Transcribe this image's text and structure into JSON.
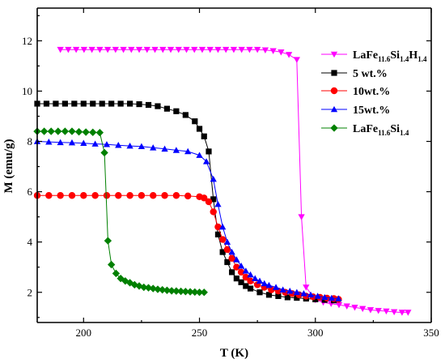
{
  "chart_data": {
    "type": "line",
    "xlabel": "T (K)",
    "ylabel": "M (emu/g)",
    "xlim": [
      180,
      350
    ],
    "ylim": [
      0.8,
      13.3
    ],
    "xticks": [
      200,
      250,
      300,
      350
    ],
    "yticks": [
      2,
      4,
      6,
      8,
      10,
      12
    ],
    "grid": false,
    "legend_position": "top-right",
    "series": [
      {
        "name": "LaFe11.6Si1.4H1.4",
        "legend_parts": [
          [
            "LaFe",
            false
          ],
          [
            "11.6",
            true
          ],
          [
            "Si",
            false
          ],
          [
            "1.4",
            true
          ],
          [
            "H",
            false
          ],
          [
            "1.4",
            true
          ]
        ],
        "color": "#ff00ff",
        "marker": "triangle-down",
        "x": [
          190,
          193.4,
          196.8,
          200.2,
          203.6,
          207,
          210.4,
          213.8,
          217.2,
          220.6,
          224,
          227.4,
          230.8,
          234.2,
          237.6,
          241,
          244.4,
          247.8,
          251.2,
          254.6,
          258,
          261.4,
          264.8,
          268.2,
          271.6,
          275,
          278.4,
          281.8,
          285.2,
          288.6,
          292,
          294,
          296,
          300,
          303.4,
          306.8,
          310.2,
          313.6,
          317,
          320.4,
          323.8,
          327.2,
          330.6,
          334,
          337.4,
          340
        ],
        "y": [
          11.65,
          11.65,
          11.65,
          11.65,
          11.65,
          11.65,
          11.65,
          11.65,
          11.65,
          11.65,
          11.65,
          11.65,
          11.65,
          11.65,
          11.65,
          11.65,
          11.65,
          11.65,
          11.65,
          11.65,
          11.65,
          11.65,
          11.65,
          11.65,
          11.65,
          11.65,
          11.63,
          11.6,
          11.55,
          11.45,
          11.25,
          5.0,
          2.2,
          1.7,
          1.6,
          1.55,
          1.5,
          1.45,
          1.4,
          1.35,
          1.3,
          1.27,
          1.25,
          1.22,
          1.2,
          1.2
        ]
      },
      {
        "name": "5 wt.%",
        "color": "#000000",
        "marker": "square",
        "x": [
          180,
          184,
          188,
          192,
          196,
          200,
          204,
          208,
          212,
          216,
          220,
          224,
          228,
          232,
          236,
          240,
          244,
          248,
          250,
          252,
          254,
          256,
          258,
          260,
          262,
          264,
          266,
          268,
          270,
          272,
          276,
          280,
          284,
          288,
          292,
          296,
          300,
          304,
          308
        ],
        "y": [
          9.5,
          9.5,
          9.5,
          9.5,
          9.5,
          9.5,
          9.5,
          9.5,
          9.5,
          9.5,
          9.5,
          9.48,
          9.45,
          9.4,
          9.3,
          9.2,
          9.05,
          8.8,
          8.5,
          8.2,
          7.6,
          5.7,
          4.3,
          3.6,
          3.2,
          2.8,
          2.55,
          2.4,
          2.25,
          2.15,
          2.0,
          1.9,
          1.85,
          1.8,
          1.78,
          1.75,
          1.72,
          1.7,
          1.68
        ]
      },
      {
        "name": "10wt.%",
        "color": "#ff0000",
        "marker": "circle",
        "x": [
          180,
          185,
          190,
          195,
          200,
          205,
          210,
          215,
          220,
          225,
          230,
          235,
          240,
          245,
          250,
          252,
          254,
          256,
          258,
          260,
          262,
          264,
          266,
          268,
          270,
          272,
          275,
          278,
          281,
          284,
          287,
          290,
          293,
          296,
          299,
          302,
          305,
          308,
          310
        ],
        "y": [
          5.85,
          5.85,
          5.85,
          5.85,
          5.85,
          5.85,
          5.85,
          5.85,
          5.85,
          5.85,
          5.85,
          5.85,
          5.85,
          5.83,
          5.8,
          5.75,
          5.6,
          5.2,
          4.6,
          4.1,
          3.7,
          3.35,
          3.0,
          2.8,
          2.6,
          2.45,
          2.3,
          2.2,
          2.1,
          2.05,
          2.0,
          1.95,
          1.9,
          1.85,
          1.82,
          1.8,
          1.77,
          1.75,
          1.72
        ]
      },
      {
        "name": "15wt.%",
        "color": "#0000ff",
        "marker": "triangle-up",
        "x": [
          180,
          185,
          190,
          195,
          200,
          205,
          210,
          215,
          220,
          225,
          230,
          235,
          240,
          245,
          250,
          253,
          256,
          258,
          260,
          262,
          264,
          266,
          268,
          270,
          272,
          274,
          276,
          278,
          280,
          283,
          286,
          289,
          292,
          295,
          298,
          301,
          304,
          307,
          310
        ],
        "y": [
          8.0,
          7.98,
          7.96,
          7.95,
          7.93,
          7.9,
          7.88,
          7.85,
          7.82,
          7.8,
          7.75,
          7.7,
          7.65,
          7.6,
          7.45,
          7.2,
          6.5,
          5.5,
          4.6,
          4.0,
          3.6,
          3.3,
          3.05,
          2.85,
          2.7,
          2.55,
          2.45,
          2.35,
          2.28,
          2.2,
          2.1,
          2.05,
          2.0,
          1.95,
          1.9,
          1.85,
          1.8,
          1.77,
          1.75
        ]
      },
      {
        "name": "LaFe11.6Si1.4",
        "legend_parts": [
          [
            "LaFe",
            false
          ],
          [
            "11.6",
            true
          ],
          [
            "Si",
            false
          ],
          [
            "1.4",
            true
          ]
        ],
        "color": "#008000",
        "marker": "diamond",
        "x": [
          180,
          183,
          186,
          189,
          192,
          195,
          198,
          201,
          204,
          207,
          209,
          210.5,
          212,
          214,
          216,
          218,
          220,
          222,
          224,
          226,
          228,
          230,
          232,
          234,
          236,
          238,
          240,
          242,
          244,
          246,
          248,
          250,
          252
        ],
        "y": [
          8.4,
          8.4,
          8.4,
          8.4,
          8.4,
          8.4,
          8.38,
          8.37,
          8.36,
          8.35,
          7.55,
          4.05,
          3.1,
          2.75,
          2.55,
          2.45,
          2.38,
          2.3,
          2.25,
          2.2,
          2.18,
          2.15,
          2.12,
          2.1,
          2.08,
          2.06,
          2.05,
          2.04,
          2.03,
          2.02,
          2.01,
          2.0,
          2.0
        ]
      }
    ]
  }
}
